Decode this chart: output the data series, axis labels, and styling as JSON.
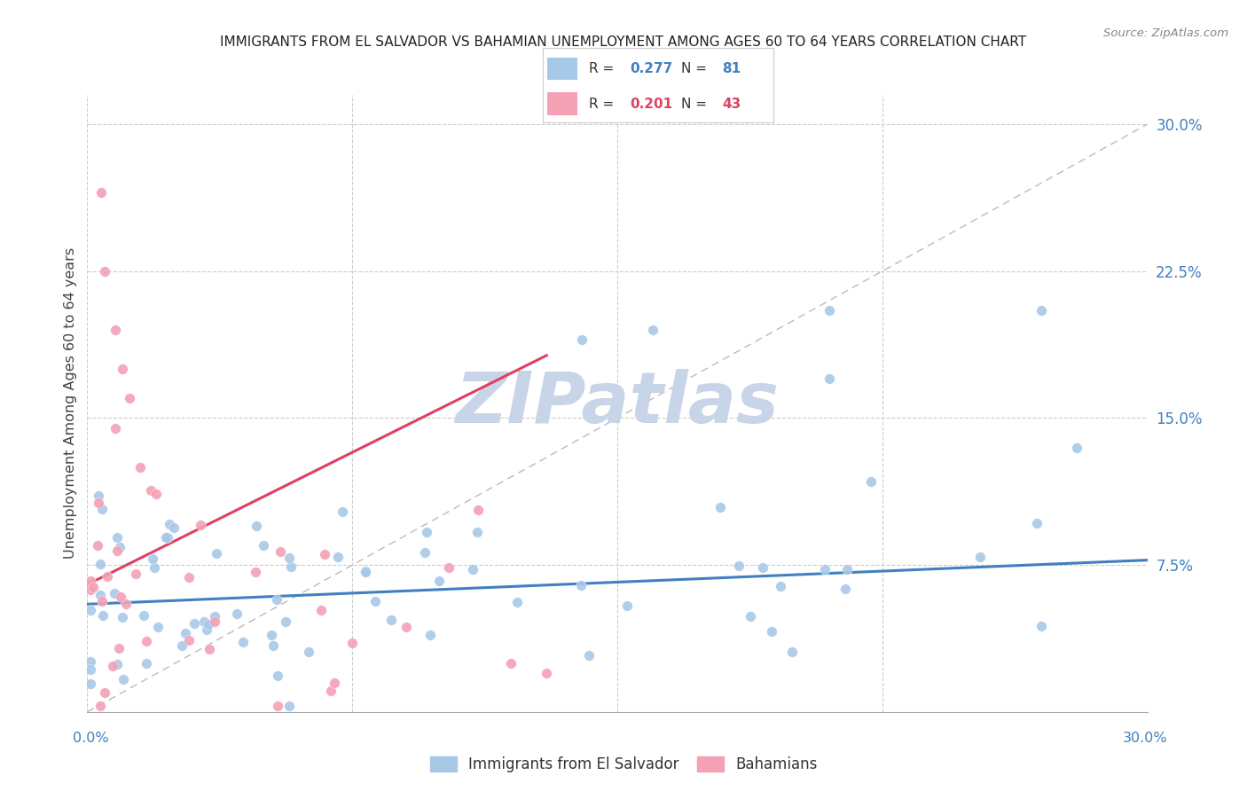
{
  "title": "IMMIGRANTS FROM EL SALVADOR VS BAHAMIAN UNEMPLOYMENT AMONG AGES 60 TO 64 YEARS CORRELATION CHART",
  "source": "Source: ZipAtlas.com",
  "ylabel": "Unemployment Among Ages 60 to 64 years",
  "legend_label1": "Immigrants from El Salvador",
  "legend_label2": "Bahamians",
  "color_blue": "#A8C8E8",
  "color_pink": "#F4A0B5",
  "color_blue_line": "#4080C0",
  "color_pink_line": "#E04060",
  "color_diag_line": "#BBBBBB",
  "watermark": "ZIPatlas",
  "watermark_color": "#C8D4E8",
  "R_blue": 0.277,
  "N_blue": 81,
  "R_pink": 0.201,
  "N_pink": 43,
  "blue_intercept": 0.055,
  "blue_slope": 0.075,
  "pink_intercept": 0.065,
  "pink_slope": 0.9,
  "xlim": [
    0,
    0.3
  ],
  "ylim": [
    0,
    0.315
  ],
  "yticks": [
    0.075,
    0.15,
    0.225,
    0.3
  ],
  "xticks": [
    0.0,
    0.075,
    0.15,
    0.225,
    0.3
  ]
}
